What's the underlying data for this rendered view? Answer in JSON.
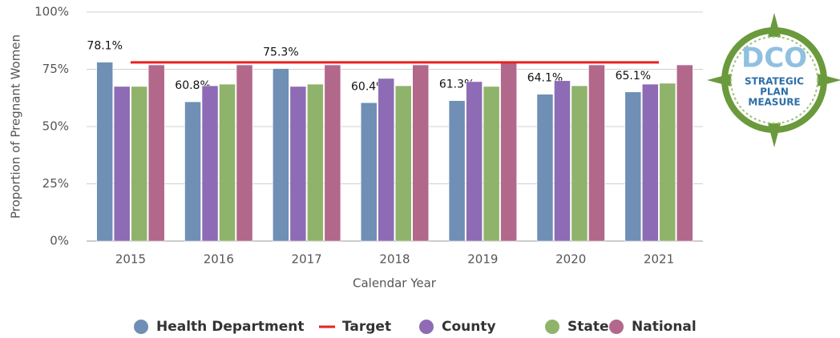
{
  "chart_data": {
    "type": "bar",
    "y_label": "Proportion of Pregnant Women",
    "x_label": "Calendar Year",
    "categories": [
      "2015",
      "2016",
      "2017",
      "2018",
      "2019",
      "2020",
      "2021"
    ],
    "series": [
      {
        "name": "Health Department",
        "type": "bar",
        "color": "#6f8fb5",
        "values": [
          78.1,
          60.8,
          75.3,
          60.4,
          61.3,
          64.1,
          65.1
        ],
        "value_labels": [
          "78.1%",
          "60.8%",
          "75.3%",
          "60.4%",
          "61.3%",
          "64.1%",
          "65.1%"
        ]
      },
      {
        "name": "Target",
        "type": "line",
        "color": "#e8211e",
        "values": [
          78,
          78,
          78,
          78,
          78,
          78,
          78
        ]
      },
      {
        "name": "County",
        "type": "bar",
        "color": "#8e6bb5",
        "values": [
          67.5,
          67.8,
          67.5,
          71,
          69.6,
          70,
          68.5
        ]
      },
      {
        "name": "State",
        "type": "bar",
        "color": "#8fb36b",
        "values": [
          67.5,
          68.5,
          68.5,
          67.8,
          67.5,
          67.8,
          68.9
        ]
      },
      {
        "name": "National",
        "type": "bar",
        "color": "#b2688a",
        "values": [
          76.9,
          76.9,
          76.9,
          76.9,
          78.3,
          76.9,
          76.9
        ]
      }
    ],
    "ylim": [
      0,
      100
    ],
    "yticks": [
      {
        "value": 0,
        "label": "0%"
      },
      {
        "value": 25,
        "label": "25%"
      },
      {
        "value": 50,
        "label": "50%"
      },
      {
        "value": 75,
        "label": "75%"
      },
      {
        "value": 100,
        "label": "100%"
      }
    ],
    "grid": true,
    "legend": "bottom"
  },
  "logo": {
    "lines": [
      "DCO",
      "STRATEGIC",
      "PLAN",
      "MEASURE"
    ]
  }
}
